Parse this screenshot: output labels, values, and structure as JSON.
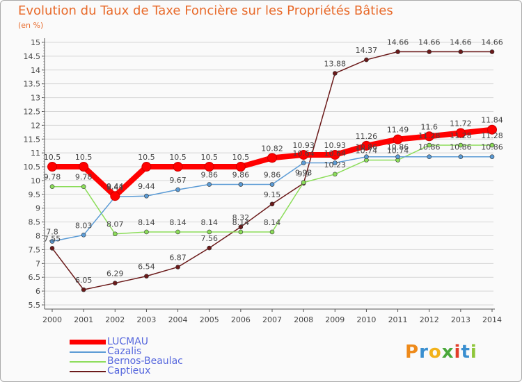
{
  "chart_data": {
    "type": "line",
    "title": "Evolution du Taux de Taxe Foncière sur les Propriétés Bâties",
    "ylabel": "(en %)",
    "xlabel": "",
    "ylim": [
      5.5,
      15
    ],
    "yticks": [
      "5.5",
      "6",
      "6.5",
      "7",
      "7.5",
      "8",
      "8.5",
      "9",
      "9.5",
      "10",
      "10.5",
      "11",
      "11.5",
      "12",
      "12.5",
      "13",
      "13.5",
      "14",
      "14.5",
      "15"
    ],
    "categories": [
      "2000",
      "2001",
      "2002",
      "2003",
      "2004",
      "2005",
      "2006",
      "2007",
      "2008",
      "2009",
      "2010",
      "2011",
      "2012",
      "2013",
      "2014"
    ],
    "series": [
      {
        "name": "Captieux",
        "color": "#6b1a1a",
        "values": [
          7.55,
          6.05,
          6.29,
          6.54,
          6.87,
          7.56,
          8.32,
          9.15,
          9.9,
          13.88,
          14.37,
          14.66,
          14.66,
          14.66,
          14.66
        ],
        "labels": [
          "7.55",
          "6.05",
          "6.29",
          "6.54",
          "6.87",
          "7.56",
          "8.32",
          "9.15",
          "9.9",
          "13.88",
          "14.37",
          "14.66",
          "14.66",
          "14.66",
          "14.66"
        ]
      },
      {
        "name": "Bernos-Beaulac",
        "color": "#8cdd5a",
        "values": [
          9.78,
          9.78,
          8.07,
          8.14,
          8.14,
          8.14,
          8.14,
          8.14,
          9.93,
          10.23,
          10.74,
          10.74,
          11.28,
          11.28,
          11.28
        ],
        "labels": [
          "9.78",
          "9.78",
          "8.07",
          "8.14",
          "8.14",
          "8.14",
          "8.14",
          "8.14",
          "9.93",
          "10.23",
          "10.74",
          "10.74",
          "11.28",
          "11.28",
          "11.28"
        ]
      },
      {
        "name": "Cazalis",
        "color": "#5b9bd5",
        "values": [
          7.8,
          8.03,
          9.41,
          9.44,
          9.67,
          9.86,
          9.86,
          9.86,
          10.64,
          10.64,
          10.86,
          10.86,
          10.86,
          10.86,
          10.86
        ],
        "labels": [
          "7.8",
          "8.03",
          "9.41",
          "9.44",
          "9.67",
          "9.86",
          "9.86",
          "9.86",
          "10.64",
          "10.64",
          "10.86",
          "10.86",
          "10.86",
          "10.86",
          "10.86"
        ]
      },
      {
        "name": "LUCMAU",
        "color": "#ff0000",
        "values": [
          10.5,
          10.5,
          9.44,
          10.5,
          10.5,
          10.5,
          10.5,
          10.82,
          10.93,
          10.93,
          11.26,
          11.49,
          11.6,
          11.72,
          11.84
        ],
        "labels": [
          "10.5",
          "10.5",
          "9.44",
          "10.5",
          "10.5",
          "10.5",
          "10.5",
          "10.82",
          "10.93",
          "10.93",
          "11.26",
          "11.49",
          "11.6",
          "11.72",
          "11.84"
        ]
      }
    ],
    "legend_position": "bottom-left"
  },
  "legend": [
    {
      "name": "LUCMAU",
      "color": "#ff0000"
    },
    {
      "name": "Cazalis",
      "color": "#5b9bd5"
    },
    {
      "name": "Bernos-Beaulac",
      "color": "#8cdd5a"
    },
    {
      "name": "Captieux",
      "color": "#6b1a1a"
    }
  ],
  "logo": {
    "text": "Proxiti",
    "colors": [
      "#ee8a1a",
      "#3a8fd0",
      "#f2b21a",
      "#4aa83a",
      "#e23d2a",
      "#3a8fd0",
      "#8fc63a"
    ]
  }
}
